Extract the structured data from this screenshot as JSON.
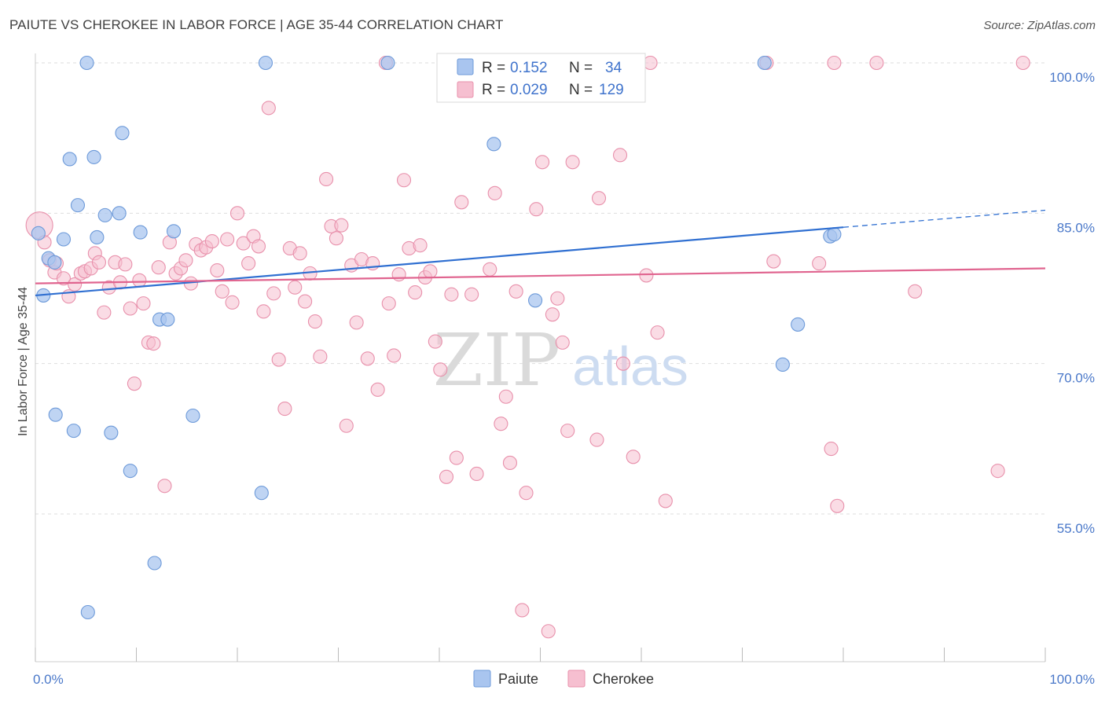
{
  "title": "PAIUTE VS CHEROKEE IN LABOR FORCE | AGE 35-44 CORRELATION CHART",
  "source": "Source: ZipAtlas.com",
  "watermark": {
    "zip": "ZIP",
    "atlas": "atlas"
  },
  "colors": {
    "paiute_fill": "#a9c5ef",
    "paiute_stroke": "#6d9ad9",
    "paiute_line": "#2f6fd1",
    "cherokee_fill": "#f6bfd0",
    "cherokee_stroke": "#e890ab",
    "cherokee_line": "#e0648f",
    "value_blue": "#3f73cc"
  },
  "legend": {
    "rows": [
      {
        "r_label": "R =",
        "r_value": "0.152",
        "n_label": "N =",
        "n_value": "34"
      },
      {
        "r_label": "R =",
        "r_value": "0.029",
        "n_label": "N =",
        "n_value": "129"
      }
    ]
  },
  "chart_data": {
    "type": "scatter",
    "title": "PAIUTE VS CHEROKEE IN LABOR FORCE | AGE 35-44 CORRELATION CHART",
    "xlabel": "",
    "ylabel": "In Labor Force | Age 35-44",
    "xlim": [
      0,
      100
    ],
    "ylim": [
      40,
      102
    ],
    "x_tick_labels": [
      "0.0%",
      "100.0%"
    ],
    "y_ticks": [
      55,
      70,
      85,
      100
    ],
    "y_tick_labels": [
      "55.0%",
      "70.0%",
      "85.0%",
      "100.0%"
    ],
    "grid": "horizontal dashed",
    "legend_position": "top-center",
    "series": [
      {
        "name": "Paiute",
        "trend": {
          "x0": 0,
          "y0": 76.8,
          "x1": 80,
          "y1": 83.6,
          "x_dash_end": 100,
          "y_dash_end": 85.3
        },
        "points": [
          [
            0.3,
            83
          ],
          [
            0.8,
            76.8
          ],
          [
            1.3,
            80.5
          ],
          [
            1.9,
            80.1
          ],
          [
            2.0,
            64.9
          ],
          [
            2.8,
            82.4
          ],
          [
            3.4,
            90.4
          ],
          [
            3.8,
            63.3
          ],
          [
            4.2,
            85.8
          ],
          [
            5.1,
            100
          ],
          [
            5.2,
            45.2
          ],
          [
            5.8,
            90.6
          ],
          [
            6.1,
            82.6
          ],
          [
            6.9,
            84.8
          ],
          [
            7.5,
            63.1
          ],
          [
            8.3,
            85.0
          ],
          [
            8.6,
            93
          ],
          [
            9.4,
            59.3
          ],
          [
            10.4,
            83.1
          ],
          [
            11.8,
            50.1
          ],
          [
            12.3,
            74.4
          ],
          [
            13.1,
            74.4
          ],
          [
            13.7,
            83.2
          ],
          [
            15.6,
            64.8
          ],
          [
            22.8,
            100
          ],
          [
            22.4,
            57.1
          ],
          [
            34.9,
            100
          ],
          [
            45.4,
            91.9
          ],
          [
            49.5,
            76.3
          ],
          [
            72.2,
            100
          ],
          [
            74.0,
            69.9
          ],
          [
            75.5,
            73.9
          ],
          [
            78.7,
            82.7
          ],
          [
            79.1,
            82.9
          ]
        ]
      },
      {
        "name": "Cherokee",
        "trend": {
          "x0": 0,
          "y0": 78.0,
          "x1": 100,
          "y1": 79.5
        },
        "points": [
          [
            0.4,
            83.8
          ],
          [
            0.9,
            82.1
          ],
          [
            1.4,
            80.3
          ],
          [
            1.9,
            79.1
          ],
          [
            2.1,
            80.0
          ],
          [
            2.8,
            78.5
          ],
          [
            3.3,
            76.7
          ],
          [
            3.9,
            77.9
          ],
          [
            4.5,
            79.0
          ],
          [
            4.9,
            79.2
          ],
          [
            5.5,
            79.5
          ],
          [
            5.9,
            81.0
          ],
          [
            6.3,
            80.1
          ],
          [
            6.8,
            75.1
          ],
          [
            7.3,
            77.6
          ],
          [
            7.9,
            80.1
          ],
          [
            8.4,
            78.1
          ],
          [
            8.9,
            79.9
          ],
          [
            9.4,
            75.5
          ],
          [
            9.8,
            68.0
          ],
          [
            10.3,
            78.3
          ],
          [
            10.7,
            76.0
          ],
          [
            11.2,
            72.1
          ],
          [
            11.7,
            72.0
          ],
          [
            12.2,
            79.6
          ],
          [
            12.8,
            57.8
          ],
          [
            13.3,
            82.1
          ],
          [
            13.9,
            79.0
          ],
          [
            14.4,
            79.5
          ],
          [
            14.9,
            80.3
          ],
          [
            15.4,
            78.0
          ],
          [
            15.9,
            81.9
          ],
          [
            16.4,
            81.3
          ],
          [
            16.9,
            81.6
          ],
          [
            17.5,
            82.2
          ],
          [
            18.0,
            79.3
          ],
          [
            18.5,
            77.2
          ],
          [
            19.0,
            82.4
          ],
          [
            19.5,
            76.1
          ],
          [
            20.0,
            85.0
          ],
          [
            20.6,
            82.0
          ],
          [
            21.1,
            80.0
          ],
          [
            21.6,
            82.7
          ],
          [
            22.1,
            81.7
          ],
          [
            22.6,
            75.2
          ],
          [
            23.1,
            95.5
          ],
          [
            23.6,
            77.0
          ],
          [
            24.1,
            70.4
          ],
          [
            24.7,
            65.5
          ],
          [
            25.2,
            81.5
          ],
          [
            25.7,
            77.6
          ],
          [
            26.2,
            81.0
          ],
          [
            26.7,
            76.2
          ],
          [
            27.2,
            79.0
          ],
          [
            27.7,
            74.2
          ],
          [
            28.2,
            70.7
          ],
          [
            28.8,
            88.4
          ],
          [
            29.3,
            83.7
          ],
          [
            29.8,
            82.5
          ],
          [
            30.3,
            83.8
          ],
          [
            30.8,
            63.8
          ],
          [
            31.3,
            79.8
          ],
          [
            31.8,
            74.1
          ],
          [
            32.3,
            80.4
          ],
          [
            32.9,
            70.5
          ],
          [
            33.4,
            80.0
          ],
          [
            33.9,
            67.4
          ],
          [
            34.7,
            100
          ],
          [
            35.0,
            76.0
          ],
          [
            35.5,
            70.8
          ],
          [
            36.0,
            78.9
          ],
          [
            36.5,
            88.3
          ],
          [
            37.0,
            81.5
          ],
          [
            37.6,
            77.1
          ],
          [
            38.1,
            81.8
          ],
          [
            38.6,
            78.6
          ],
          [
            39.1,
            79.2
          ],
          [
            39.6,
            72.2
          ],
          [
            40.1,
            69.4
          ],
          [
            40.7,
            58.7
          ],
          [
            41.2,
            76.9
          ],
          [
            41.7,
            60.6
          ],
          [
            42.2,
            86.1
          ],
          [
            42.7,
            100
          ],
          [
            43.2,
            76.9
          ],
          [
            43.7,
            59.0
          ],
          [
            44.3,
            100
          ],
          [
            45.0,
            79.4
          ],
          [
            45.5,
            87.0
          ],
          [
            46.1,
            64.0
          ],
          [
            46.6,
            66.7
          ],
          [
            47.0,
            60.1
          ],
          [
            47.6,
            77.2
          ],
          [
            48.2,
            45.4
          ],
          [
            48.6,
            57.1
          ],
          [
            49.1,
            100
          ],
          [
            49.6,
            85.4
          ],
          [
            50.2,
            90.1
          ],
          [
            50.7,
            100
          ],
          [
            51.2,
            74.9
          ],
          [
            51.7,
            76.5
          ],
          [
            52.2,
            72.1
          ],
          [
            52.7,
            63.3
          ],
          [
            53.2,
            90.1
          ],
          [
            54.3,
            100
          ],
          [
            55.6,
            62.4
          ],
          [
            55.8,
            86.5
          ],
          [
            56.4,
            100
          ],
          [
            57.9,
            90.8
          ],
          [
            58.2,
            70.0
          ],
          [
            58.6,
            100
          ],
          [
            59.2,
            60.7
          ],
          [
            60.5,
            78.8
          ],
          [
            60.9,
            100
          ],
          [
            61.6,
            73.1
          ],
          [
            62.4,
            56.3
          ],
          [
            72.4,
            100
          ],
          [
            77.6,
            80.0
          ],
          [
            78.8,
            61.5
          ],
          [
            79.1,
            100
          ],
          [
            79.4,
            55.8
          ],
          [
            83.3,
            100
          ],
          [
            87.1,
            77.2
          ],
          [
            95.3,
            59.3
          ],
          [
            97.8,
            100
          ],
          [
            43.6,
            100
          ],
          [
            50.8,
            43.3
          ],
          [
            56.1,
            100
          ],
          [
            73.1,
            80.2
          ]
        ]
      }
    ]
  },
  "bottom_legend": [
    {
      "name": "Paiute"
    },
    {
      "name": "Cherokee"
    }
  ]
}
